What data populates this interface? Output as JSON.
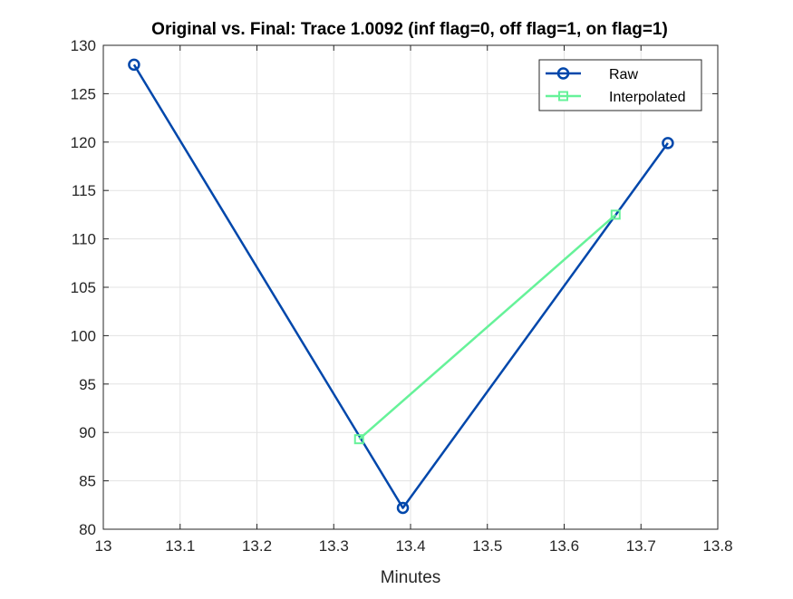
{
  "chart_data": {
    "type": "line",
    "title": "Original vs. Final: Trace 1.0092 (inf flag=0, off flag=1, on flag=1)",
    "xlabel": "Minutes",
    "ylabel": "",
    "xlim": [
      13,
      13.8
    ],
    "ylim": [
      80,
      130
    ],
    "xticks": [
      "13",
      "13.1",
      "13.2",
      "13.3",
      "13.4",
      "13.5",
      "13.6",
      "13.7",
      "13.8"
    ],
    "yticks": [
      "80",
      "85",
      "90",
      "95",
      "100",
      "105",
      "110",
      "115",
      "120",
      "125",
      "130"
    ],
    "grid": true,
    "legend_position": "top-right",
    "series": [
      {
        "name": "Raw",
        "color": "#0047ab",
        "marker": "circle",
        "x": [
          13.04,
          13.39,
          13.735
        ],
        "y": [
          128.0,
          82.2,
          119.9
        ]
      },
      {
        "name": "Interpolated",
        "color": "#66f299",
        "marker": "square",
        "x": [
          13.333,
          13.667
        ],
        "y": [
          89.3,
          112.5
        ]
      }
    ]
  }
}
